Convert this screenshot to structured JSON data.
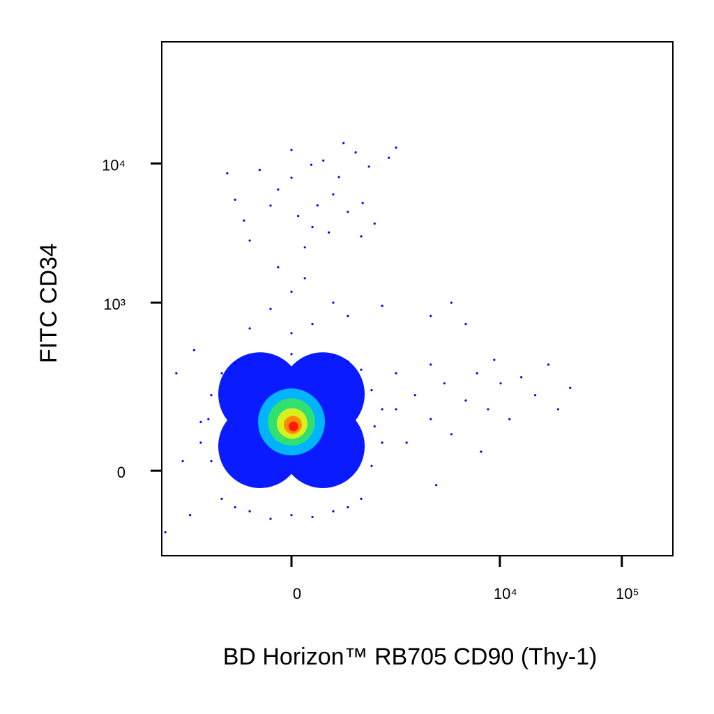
{
  "chart_data": {
    "type": "scatter",
    "xlabel": "BD Horizon™ RB705 CD90 (Thy-1)",
    "ylabel": "FITC  CD34",
    "xscale": "biexponential",
    "yscale": "biexponential",
    "xlim": [
      -2250,
      262000
    ],
    "ylim": [
      -239,
      74600
    ],
    "xticks": [
      0,
      {
        "value": 10000,
        "label": "10⁴"
      },
      {
        "value": 100000,
        "label": "10⁵"
      }
    ],
    "yticks": [
      0,
      {
        "value": 1000,
        "label": "10³"
      },
      {
        "value": 10000,
        "label": "10⁴"
      }
    ],
    "series": [
      {
        "color": "#0a1cff",
        "marker_size": 60,
        "x": [
          -246,
          246,
          -246,
          246,
          0
        ],
        "y": [
          204,
          204,
          52,
          52,
          112
        ]
      },
      {
        "color": "#00b4ff",
        "marker_size": 48,
        "x": [
          0
        ],
        "y": [
          112
        ]
      },
      {
        "color": "#30e070",
        "marker_size": 34,
        "x": [
          0
        ],
        "y": [
          112
        ]
      },
      {
        "color": "#d8f020",
        "marker_size": 22,
        "x": [
          5
        ],
        "y": [
          108
        ]
      },
      {
        "color": "#ff8c00",
        "marker_size": 13,
        "x": [
          10
        ],
        "y": [
          104
        ]
      },
      {
        "color": "#ff1a00",
        "marker_size": 7,
        "x": [
          15
        ],
        "y": [
          100
        ]
      },
      {
        "color": "#0000ff",
        "marker_size": 1.6,
        "x": [
          -1050,
          -1050,
          -847,
          -847,
          -678,
          -678,
          -342,
          -342,
          0,
          0,
          342,
          342,
          678,
          678,
          847,
          847,
          1050,
          1050,
          -159,
          159,
          -500,
          500,
          -500,
          500,
          -900,
          900,
          -342,
          -159,
          0,
          159,
          342,
          500,
          678,
          -500,
          0,
          250,
          -250,
          100,
          400,
          -100,
          600,
          800,
          1384,
          200,
          50,
          300,
          -400,
          700,
          900,
          1200,
          -600,
          450,
          150,
          -159,
          0,
          159,
          342,
          -342,
          100,
          500,
          0,
          -100,
          1050,
          2700,
          4000,
          5250,
          1384,
          1384,
          2000,
          2700,
          2700,
          3500,
          4000,
          5250,
          6500,
          8000,
          10150,
          12000,
          15000,
          19500,
          25000,
          37700,
          30000,
          7000,
          3000,
          1700,
          9000,
          -2100,
          -1500,
          -1300,
          -1700,
          -1200
        ],
        "y": [
          112,
          60,
          200,
          20,
          300,
          -60,
          380,
          -90,
          420,
          -100,
          400,
          -90,
          320,
          -60,
          220,
          10,
          150,
          60,
          -110,
          -105,
          -80,
          -80,
          360,
          370,
          120,
          100,
          2800,
          4990,
          7900,
          3500,
          6000,
          4500,
          3000,
          5500,
          12500,
          10500,
          9000,
          2500,
          8000,
          6500,
          12000,
          9500,
          13000,
          5000,
          4200,
          3200,
          3900,
          5200,
          3700,
          11000,
          8500,
          14000,
          9800,
          900,
          1200,
          700,
          1000,
          650,
          1500,
          800,
          600,
          1800,
          950,
          800,
          1000,
          700,
          150,
          300,
          200,
          120,
          350,
          250,
          80,
          180,
          300,
          150,
          250,
          120,
          280,
          200,
          350,
          230,
          150,
          40,
          -30,
          60,
          380,
          -150,
          20,
          -100,
          300,
          450
        ]
      }
    ]
  }
}
